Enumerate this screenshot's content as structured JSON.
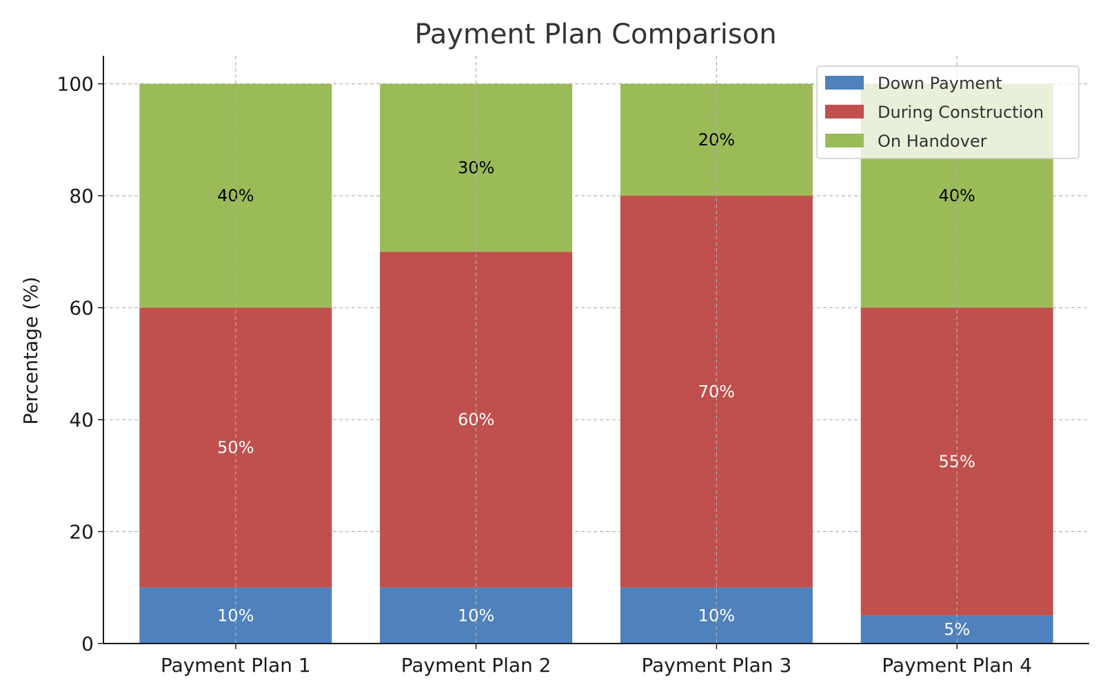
{
  "chart_data": {
    "type": "bar",
    "stacked": true,
    "title": "Payment Plan Comparison",
    "xlabel": "",
    "ylabel": "Percentage (%)",
    "ylim": [
      0,
      105
    ],
    "yticks": [
      0,
      20,
      40,
      60,
      80,
      100
    ],
    "grid": true,
    "legend_position": "top-right",
    "categories": [
      "Payment Plan 1",
      "Payment Plan 2",
      "Payment Plan 3",
      "Payment Plan 4"
    ],
    "series": [
      {
        "name": "Down Payment",
        "color": "#4f81bd",
        "label_color": "#ffffff",
        "values": [
          10,
          10,
          10,
          5
        ],
        "labels": [
          "10%",
          "10%",
          "10%",
          "5%"
        ]
      },
      {
        "name": "During Construction",
        "color": "#c0504d",
        "label_color": "#ffffff",
        "values": [
          50,
          60,
          70,
          55
        ],
        "labels": [
          "50%",
          "60%",
          "70%",
          "55%"
        ]
      },
      {
        "name": "On Handover",
        "color": "#9bbb59",
        "label_color": "#000000",
        "values": [
          40,
          30,
          20,
          40
        ],
        "labels": [
          "40%",
          "30%",
          "20%",
          "40%"
        ]
      }
    ]
  }
}
